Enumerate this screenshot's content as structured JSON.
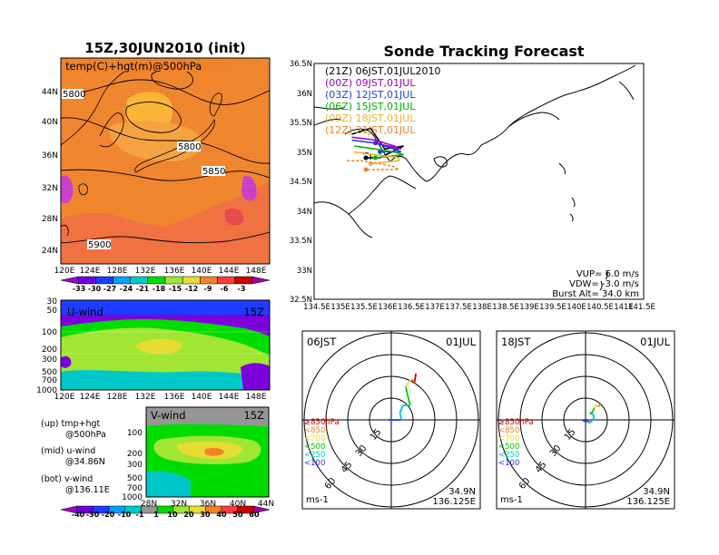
{
  "titles": {
    "init": "15Z,30JUN2010 (init)",
    "main": "Sonde Tracking Forecast"
  },
  "map500": {
    "label": "temp(C)+hgt(m)@500hPa",
    "lat_ticks": [
      "44N",
      "40N",
      "36N",
      "32N",
      "28N",
      "24N"
    ],
    "lon_ticks": [
      "120E",
      "124E",
      "128E",
      "132E",
      "136E",
      "140E",
      "144E",
      "148E"
    ],
    "contour_labels": [
      "5800",
      "5800",
      "5850",
      "5900"
    ],
    "colorbar": [
      "-33",
      "-30",
      "-27",
      "-24",
      "-21",
      "-18",
      "-15",
      "-12",
      "-9",
      "-6",
      "-3"
    ],
    "colorbar_colors": [
      "#a000c8",
      "#6e00dc",
      "#1e3cff",
      "#00a0ff",
      "#00c8c8",
      "#00dc00",
      "#a0e632",
      "#e6dc32",
      "#f08228",
      "#fa3c3c",
      "#c80000",
      "#a000a0"
    ]
  },
  "uwind": {
    "label": "U-wind",
    "time": "15Z",
    "p_ticks": [
      "30",
      "50",
      "100",
      "200",
      "300",
      "500",
      "700",
      "1000"
    ],
    "lon_ticks": [
      "120E",
      "124E",
      "128E",
      "132E",
      "136E",
      "140E",
      "144E",
      "148E"
    ]
  },
  "vwind": {
    "label": "V-wind",
    "time": "15Z",
    "p_ticks": [
      "100",
      "200",
      "300",
      "500",
      "700",
      "1000"
    ],
    "lat_ticks": [
      "28N",
      "32N",
      "36N",
      "40N",
      "44N"
    ]
  },
  "legend_text": [
    "(up) tmp+hgt",
    "@500hPa",
    "(mid) u-wind",
    "@34.86N",
    "(bot) v-wind",
    "@136.11E"
  ],
  "wind_colorbar": {
    "labels": [
      "-40",
      "-30",
      "-20",
      "-10",
      "-1",
      "1",
      "10",
      "20",
      "30",
      "40",
      "50",
      "60"
    ],
    "colors": [
      "#a000c8",
      "#6e00dc",
      "#1e3cff",
      "#00a0ff",
      "#00c8c8",
      "#969696",
      "#00dc00",
      "#a0e632",
      "#e6dc32",
      "#f08228",
      "#fa3c3c",
      "#c80000",
      "#a000a0"
    ]
  },
  "track": {
    "lat_ticks": [
      "36.5N",
      "36N",
      "35.5N",
      "35N",
      "34.5N",
      "34N",
      "33.5N",
      "33N",
      "32.5N"
    ],
    "lon_ticks": [
      "134.5E",
      "135E",
      "135.5E",
      "136E",
      "136.5E",
      "137E",
      "137.5E",
      "138E",
      "138.5E",
      "139E",
      "139.5E",
      "140E",
      "140.5E",
      "141E",
      "141.5E"
    ],
    "legend": [
      {
        "text": "(21Z)  06JST,01JUL2010",
        "color": "#000000"
      },
      {
        "text": "(00Z)  09JST,01JUL",
        "color": "#a000c8"
      },
      {
        "text": "(03Z)  12JST,01JUL",
        "color": "#1e3cff"
      },
      {
        "text": "(06Z)  15JST,01JUL",
        "color": "#00b400"
      },
      {
        "text": "(09Z)  18JST,01JUL",
        "color": "#e6b432"
      },
      {
        "text": "(12Z)  21JST,01JUL",
        "color": "#f08228"
      }
    ],
    "info": [
      "VUP=  6.0  m/s",
      "VDW=  -3.0  m/s",
      "Burst  Alt=  34.0  km"
    ]
  },
  "hodo_left": {
    "time": "06JST",
    "date": "01JUL",
    "ring_labels": [
      "15",
      "30",
      "45",
      "60"
    ],
    "unit": "ms-1",
    "lat": "34.9N",
    "lon": "136.125E",
    "levels": [
      {
        "text": "≥850hPa",
        "color": "#c80000"
      },
      {
        "text": "<850",
        "color": "#f08228"
      },
      {
        "text": "<700",
        "color": "#e6dc32"
      },
      {
        "text": "<500",
        "color": "#00c800"
      },
      {
        "text": "<250",
        "color": "#00c8c8"
      },
      {
        "text": "<100",
        "color": "#1e3cff"
      }
    ]
  },
  "hodo_right": {
    "time": "18JST",
    "date": "01JUL",
    "ring_labels": [
      "15",
      "30",
      "45",
      "60"
    ],
    "unit": "ms-1",
    "lat": "34.9N",
    "lon": "136.125E",
    "levels": [
      {
        "text": "≥850hPa",
        "color": "#c80000"
      },
      {
        "text": "<850",
        "color": "#f08228"
      },
      {
        "text": "<700",
        "color": "#e6dc32"
      },
      {
        "text": "<500",
        "color": "#00c800"
      },
      {
        "text": "<250",
        "color": "#00c8c8"
      },
      {
        "text": "<100",
        "color": "#1e3cff"
      }
    ]
  },
  "chart_data": [
    {
      "type": "heatmap",
      "xlim": [
        120,
        149
      ],
      "ylim": [
        22,
        47
      ]
    },
    {
      "type": "heatmap",
      "xlim": [
        120,
        149
      ],
      "ylim": [
        1000,
        30
      ],
      "yscale": "log"
    },
    {
      "type": "heatmap",
      "xlim": [
        28,
        44
      ],
      "ylim": [
        1000,
        100
      ],
      "yscale": "log"
    },
    {
      "type": "line",
      "xlim": [
        134.5,
        141.5
      ],
      "ylim": [
        32.5,
        36.5
      ],
      "series": [
        {
          "color": "#000000",
          "x": [
            135.3,
            135.7,
            136.0,
            136.4,
            136.15,
            135.9,
            135.6
          ],
          "y": [
            35.3,
            35.4,
            35.05,
            35.1,
            35.0,
            34.9,
            34.9
          ]
        },
        {
          "color": "#a000c8",
          "x": [
            135.3,
            135.8,
            136.2,
            136.35,
            135.8
          ],
          "y": [
            35.25,
            35.2,
            35.1,
            35.05,
            35.15
          ]
        },
        {
          "color": "#1e3cff",
          "x": [
            135.3,
            135.8,
            136.2,
            136.35,
            135.9
          ],
          "y": [
            35.2,
            35.15,
            35.05,
            35.0,
            35.0
          ]
        },
        {
          "color": "#00b400",
          "x": [
            135.35,
            135.8,
            136.2,
            136.4,
            135.8
          ],
          "y": [
            35.1,
            35.05,
            35.0,
            34.95,
            34.9
          ]
        },
        {
          "color": "#e6b432",
          "x": [
            135.35,
            135.8,
            136.3,
            136.3,
            135.7
          ],
          "y": [
            35.0,
            34.95,
            34.9,
            34.85,
            34.8
          ]
        },
        {
          "color": "#f08228",
          "x": [
            135.2,
            135.5,
            135.9,
            136.2,
            136.3,
            135.6
          ],
          "y": [
            34.85,
            34.85,
            34.8,
            34.75,
            34.7,
            34.7
          ]
        }
      ]
    },
    {
      "type": "scatter",
      "xlim": [
        -60,
        60
      ],
      "ylim": [
        -60,
        60
      ],
      "x": [
        -2,
        2,
        5,
        7,
        6,
        8,
        13,
        11,
        10,
        12,
        14,
        16,
        17
      ],
      "y": [
        0,
        0,
        0,
        0,
        5,
        10,
        10,
        18,
        23,
        26,
        28,
        26,
        32
      ]
    },
    {
      "type": "scatter",
      "xlim": [
        -60,
        60
      ],
      "ylim": [
        -60,
        60
      ],
      "x": [
        -2,
        -1,
        2,
        3,
        5,
        6,
        3,
        4,
        6,
        7,
        9,
        10
      ],
      "y": [
        0,
        -1,
        -1,
        -2,
        0,
        3,
        5,
        4,
        8,
        10,
        9,
        11
      ]
    }
  ]
}
